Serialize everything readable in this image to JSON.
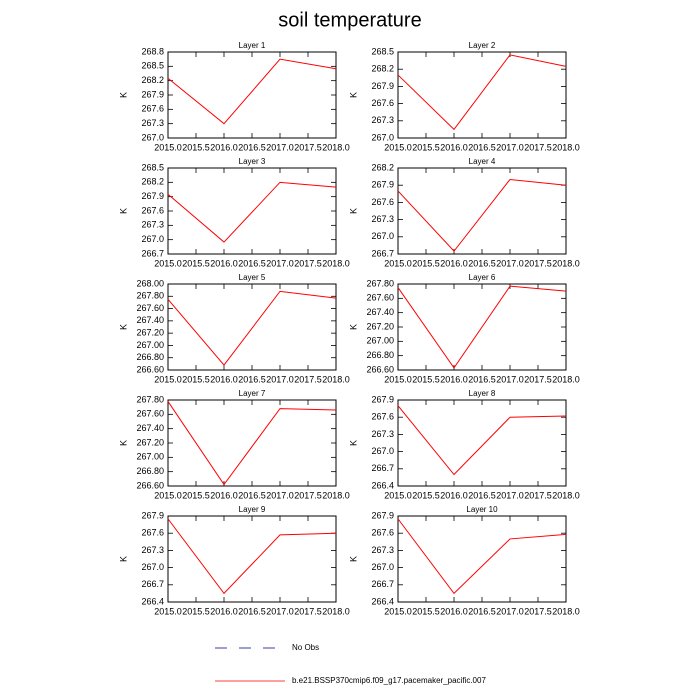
{
  "title": "soil temperature",
  "legend": [
    {
      "name": "No Obs",
      "color": "#000080",
      "dash": true
    },
    {
      "name": "b.e21.BSSP370cmip6.f09_g17.pacemaker_pacific.007",
      "color": "#ff0000",
      "dash": false
    }
  ],
  "chart_data": [
    {
      "type": "line",
      "title": "Layer 1",
      "ylabel": "K",
      "x": [
        2015,
        2016,
        2017,
        2018
      ],
      "xlim": [
        2015,
        2018
      ],
      "xticks": [
        {
          "value": 2015,
          "label": "2015.0"
        },
        {
          "value": 2015.5,
          "label": "2015.5"
        },
        {
          "value": 2016,
          "label": "2016.0"
        },
        {
          "value": 2016.5,
          "label": "2016.5"
        },
        {
          "value": 2017,
          "label": "2017.0"
        },
        {
          "value": 2017.5,
          "label": "2017.5"
        },
        {
          "value": 2018,
          "label": "2018.0"
        }
      ],
      "ylim": [
        267.0,
        268.8
      ],
      "yticks": [
        {
          "value": 267.0,
          "label": "267.0"
        },
        267.3,
        267.6,
        267.9,
        268.2,
        268.5,
        268.8
      ],
      "series": [
        {
          "color": "#ff0000",
          "values": [
            268.25,
            267.3,
            268.65,
            268.45
          ]
        }
      ]
    },
    {
      "type": "line",
      "title": "Layer 2",
      "ylabel": "K",
      "x": [
        2015,
        2016,
        2017,
        2018
      ],
      "xlim": [
        2015,
        2018
      ],
      "xticks": [
        {
          "value": 2015,
          "label": "2015.0"
        },
        {
          "value": 2015.5,
          "label": "2015.5"
        },
        {
          "value": 2016,
          "label": "2016.0"
        },
        {
          "value": 2016.5,
          "label": "2016.5"
        },
        {
          "value": 2017,
          "label": "2017.0"
        },
        {
          "value": 2017.5,
          "label": "2017.5"
        },
        {
          "value": 2018,
          "label": "2018.0"
        }
      ],
      "ylim": [
        267.0,
        268.5
      ],
      "yticks": [
        {
          "value": 267.0,
          "label": "267.0"
        },
        267.3,
        267.6,
        267.9,
        268.2,
        268.5
      ],
      "series": [
        {
          "color": "#ff0000",
          "values": [
            268.1,
            267.15,
            268.45,
            268.25
          ]
        }
      ]
    },
    {
      "type": "line",
      "title": "Layer 3",
      "ylabel": "K",
      "x": [
        2015,
        2016,
        2017,
        2018
      ],
      "xlim": [
        2015,
        2018
      ],
      "xticks": [
        {
          "value": 2015,
          "label": "2015.0"
        },
        {
          "value": 2015.5,
          "label": "2015.5"
        },
        {
          "value": 2016,
          "label": "2016.0"
        },
        {
          "value": 2016.5,
          "label": "2016.5"
        },
        {
          "value": 2017,
          "label": "2017.0"
        },
        {
          "value": 2017.5,
          "label": "2017.5"
        },
        {
          "value": 2018,
          "label": "2018.0"
        }
      ],
      "ylim": [
        266.7,
        268.5
      ],
      "yticks": [
        266.7,
        {
          "value": 267.0,
          "label": "267.0"
        },
        267.3,
        267.6,
        267.9,
        268.2,
        268.5
      ],
      "series": [
        {
          "color": "#ff0000",
          "values": [
            267.95,
            266.95,
            268.2,
            268.1
          ]
        }
      ]
    },
    {
      "type": "line",
      "title": "Layer 4",
      "ylabel": "K",
      "x": [
        2015,
        2016,
        2017,
        2018
      ],
      "xlim": [
        2015,
        2018
      ],
      "xticks": [
        {
          "value": 2015,
          "label": "2015.0"
        },
        {
          "value": 2015.5,
          "label": "2015.5"
        },
        {
          "value": 2016,
          "label": "2016.0"
        },
        {
          "value": 2016.5,
          "label": "2016.5"
        },
        {
          "value": 2017,
          "label": "2017.0"
        },
        {
          "value": 2017.5,
          "label": "2017.5"
        },
        {
          "value": 2018,
          "label": "2018.0"
        }
      ],
      "ylim": [
        266.7,
        268.2
      ],
      "yticks": [
        266.7,
        {
          "value": 267.0,
          "label": "267.0"
        },
        267.3,
        267.6,
        267.9,
        268.2
      ],
      "series": [
        {
          "color": "#ff0000",
          "values": [
            267.8,
            266.75,
            268.0,
            267.9
          ]
        }
      ]
    },
    {
      "type": "line",
      "title": "Layer 5",
      "ylabel": "K",
      "x": [
        2015,
        2016,
        2017,
        2018
      ],
      "xlim": [
        2015,
        2018
      ],
      "xticks": [
        {
          "value": 2015,
          "label": "2015.0"
        },
        {
          "value": 2015.5,
          "label": "2015.5"
        },
        {
          "value": 2016,
          "label": "2016.0"
        },
        {
          "value": 2016.5,
          "label": "2016.5"
        },
        {
          "value": 2017,
          "label": "2017.0"
        },
        {
          "value": 2017.5,
          "label": "2017.5"
        },
        {
          "value": 2018,
          "label": "2018.0"
        }
      ],
      "ylim": [
        266.6,
        268.0
      ],
      "yticks": [
        {
          "value": 266.6,
          "label": "266.60"
        },
        {
          "value": 266.8,
          "label": "266.80"
        },
        {
          "value": 267.0,
          "label": "267.00"
        },
        {
          "value": 267.2,
          "label": "267.20"
        },
        {
          "value": 267.4,
          "label": "267.40"
        },
        {
          "value": 267.6,
          "label": "267.60"
        },
        {
          "value": 267.8,
          "label": "267.80"
        },
        {
          "value": 268.0,
          "label": "268.00"
        }
      ],
      "series": [
        {
          "color": "#ff0000",
          "values": [
            267.75,
            266.68,
            267.88,
            267.77
          ]
        }
      ]
    },
    {
      "type": "line",
      "title": "Layer 6",
      "ylabel": "K",
      "x": [
        2015,
        2016,
        2017,
        2018
      ],
      "xlim": [
        2015,
        2018
      ],
      "xticks": [
        {
          "value": 2015,
          "label": "2015.0"
        },
        {
          "value": 2015.5,
          "label": "2015.5"
        },
        {
          "value": 2016,
          "label": "2016.0"
        },
        {
          "value": 2016.5,
          "label": "2016.5"
        },
        {
          "value": 2017,
          "label": "2017.0"
        },
        {
          "value": 2017.5,
          "label": "2017.5"
        },
        {
          "value": 2018,
          "label": "2018.0"
        }
      ],
      "ylim": [
        266.6,
        267.8
      ],
      "yticks": [
        {
          "value": 266.6,
          "label": "266.60"
        },
        {
          "value": 266.8,
          "label": "266.80"
        },
        {
          "value": 267.0,
          "label": "267.00"
        },
        {
          "value": 267.2,
          "label": "267.20"
        },
        {
          "value": 267.4,
          "label": "267.40"
        },
        {
          "value": 267.6,
          "label": "267.60"
        },
        {
          "value": 267.8,
          "label": "267.80"
        }
      ],
      "series": [
        {
          "color": "#ff0000",
          "values": [
            267.75,
            266.63,
            267.77,
            267.7
          ]
        }
      ]
    },
    {
      "type": "line",
      "title": "Layer 7",
      "ylabel": "K",
      "x": [
        2015,
        2016,
        2017,
        2018
      ],
      "xlim": [
        2015,
        2018
      ],
      "xticks": [
        {
          "value": 2015,
          "label": "2015.0"
        },
        {
          "value": 2015.5,
          "label": "2015.5"
        },
        {
          "value": 2016,
          "label": "2016.0"
        },
        {
          "value": 2016.5,
          "label": "2016.5"
        },
        {
          "value": 2017,
          "label": "2017.0"
        },
        {
          "value": 2017.5,
          "label": "2017.5"
        },
        {
          "value": 2018,
          "label": "2018.0"
        }
      ],
      "ylim": [
        266.6,
        267.8
      ],
      "yticks": [
        {
          "value": 266.6,
          "label": "266.60"
        },
        {
          "value": 266.8,
          "label": "266.80"
        },
        {
          "value": 267.0,
          "label": "267.00"
        },
        {
          "value": 267.2,
          "label": "267.20"
        },
        {
          "value": 267.4,
          "label": "267.40"
        },
        {
          "value": 267.6,
          "label": "267.60"
        },
        {
          "value": 267.8,
          "label": "267.80"
        }
      ],
      "series": [
        {
          "color": "#ff0000",
          "values": [
            267.78,
            266.62,
            267.68,
            267.66
          ]
        }
      ]
    },
    {
      "type": "line",
      "title": "Layer 8",
      "ylabel": "K",
      "x": [
        2015,
        2016,
        2017,
        2018
      ],
      "xlim": [
        2015,
        2018
      ],
      "xticks": [
        {
          "value": 2015,
          "label": "2015.0"
        },
        {
          "value": 2015.5,
          "label": "2015.5"
        },
        {
          "value": 2016,
          "label": "2016.0"
        },
        {
          "value": 2016.5,
          "label": "2016.5"
        },
        {
          "value": 2017,
          "label": "2017.0"
        },
        {
          "value": 2017.5,
          "label": "2017.5"
        },
        {
          "value": 2018,
          "label": "2018.0"
        }
      ],
      "ylim": [
        266.4,
        267.9
      ],
      "yticks": [
        266.4,
        266.7,
        {
          "value": 267.0,
          "label": "267.0"
        },
        267.3,
        267.6,
        267.9
      ],
      "series": [
        {
          "color": "#ff0000",
          "values": [
            267.8,
            266.6,
            267.6,
            267.62
          ]
        }
      ]
    },
    {
      "type": "line",
      "title": "Layer 9",
      "ylabel": "K",
      "x": [
        2015,
        2016,
        2017,
        2018
      ],
      "xlim": [
        2015,
        2018
      ],
      "xticks": [
        {
          "value": 2015,
          "label": "2015.0"
        },
        {
          "value": 2015.5,
          "label": "2015.5"
        },
        {
          "value": 2016,
          "label": "2016.0"
        },
        {
          "value": 2016.5,
          "label": "2016.5"
        },
        {
          "value": 2017,
          "label": "2017.0"
        },
        {
          "value": 2017.5,
          "label": "2017.5"
        },
        {
          "value": 2018,
          "label": "2018.0"
        }
      ],
      "ylim": [
        266.4,
        267.9
      ],
      "yticks": [
        266.4,
        266.7,
        {
          "value": 267.0,
          "label": "267.0"
        },
        267.3,
        267.6,
        267.9
      ],
      "series": [
        {
          "color": "#ff0000",
          "values": [
            267.85,
            266.55,
            267.57,
            267.6
          ]
        }
      ]
    },
    {
      "type": "line",
      "title": "Layer 10",
      "ylabel": "K",
      "x": [
        2015,
        2016,
        2017,
        2018
      ],
      "xlim": [
        2015,
        2018
      ],
      "xticks": [
        {
          "value": 2015,
          "label": "2015.0"
        },
        {
          "value": 2015.5,
          "label": "2015.5"
        },
        {
          "value": 2016,
          "label": "2016.0"
        },
        {
          "value": 2016.5,
          "label": "2016.5"
        },
        {
          "value": 2017,
          "label": "2017.0"
        },
        {
          "value": 2017.5,
          "label": "2017.5"
        },
        {
          "value": 2018,
          "label": "2018.0"
        }
      ],
      "ylim": [
        266.4,
        267.9
      ],
      "yticks": [
        266.4,
        266.7,
        {
          "value": 267.0,
          "label": "267.0"
        },
        267.3,
        267.6,
        267.9
      ],
      "series": [
        {
          "color": "#ff0000",
          "values": [
            267.85,
            266.55,
            267.5,
            267.58
          ]
        }
      ]
    }
  ]
}
